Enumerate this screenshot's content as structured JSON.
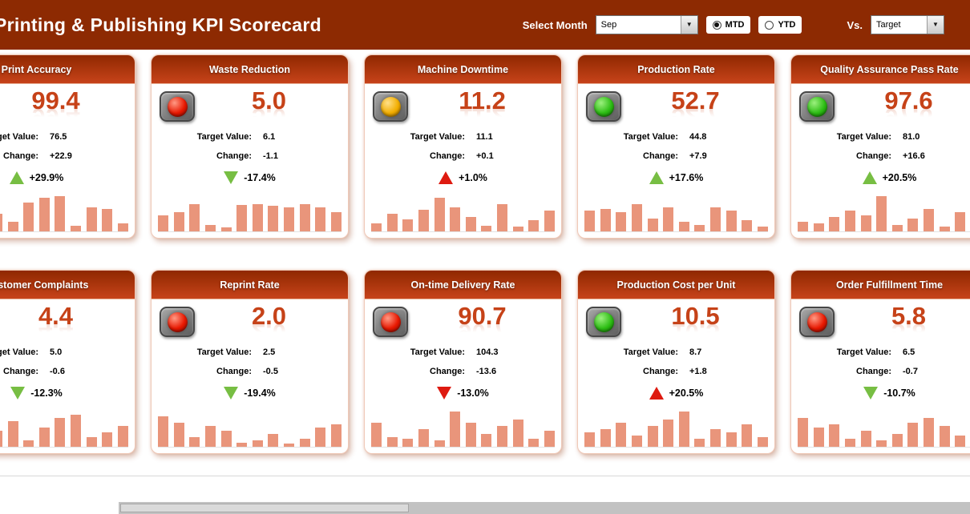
{
  "header": {
    "title": "Printing & Publishing KPI Scorecard",
    "select_month_label": "Select Month",
    "month_value": "Sep",
    "mtd_label": "MTD",
    "ytd_label": "YTD",
    "selected_period": "MTD",
    "vs_label": "Vs.",
    "vs_value": "Target"
  },
  "labels": {
    "target": "Target Value:",
    "change": "Change:"
  },
  "colors": {
    "topbar_bg": "#8D2A02",
    "card_header_top": "#8F2800",
    "card_header_bottom": "#C7431A",
    "value_text": "#C64218",
    "bar_fill": "#E9957B",
    "arrow_green": "#77BE43",
    "arrow_red": "#DE1A10"
  },
  "cards": [
    {
      "title": "Print Accuracy",
      "value": "99.4",
      "target_value": "76.5",
      "change": "+22.9",
      "percent": "+29.9%",
      "trend": "up",
      "trend_color": "green",
      "light": "green",
      "bars": [
        14,
        18,
        5,
        22,
        12,
        36,
        42,
        44,
        7,
        30,
        28,
        10
      ]
    },
    {
      "title": "Waste Reduction",
      "value": "5.0",
      "target_value": "6.1",
      "change": "-1.1",
      "percent": "-17.4%",
      "trend": "down",
      "trend_color": "green",
      "light": "red",
      "bars": [
        20,
        24,
        34,
        8,
        5,
        33,
        34,
        32,
        30,
        34,
        30,
        24
      ]
    },
    {
      "title": "Machine Downtime",
      "value": "11.2",
      "target_value": "11.1",
      "change": "+0.1",
      "percent": "+1.0%",
      "trend": "up",
      "trend_color": "red",
      "light": "yellow",
      "bars": [
        10,
        22,
        15,
        27,
        42,
        30,
        18,
        7,
        34,
        6,
        14,
        26
      ]
    },
    {
      "title": "Production Rate",
      "value": "52.7",
      "target_value": "44.8",
      "change": "+7.9",
      "percent": "+17.6%",
      "trend": "up",
      "trend_color": "green",
      "light": "green",
      "bars": [
        26,
        28,
        24,
        34,
        16,
        30,
        12,
        8,
        30,
        26,
        14,
        6
      ]
    },
    {
      "title": "Quality Assurance Pass Rate",
      "value": "97.6",
      "target_value": "81.0",
      "change": "+16.6",
      "percent": "+20.5%",
      "trend": "up",
      "trend_color": "green",
      "light": "green",
      "bars": [
        12,
        10,
        18,
        26,
        20,
        44,
        8,
        16,
        28,
        6,
        24,
        18
      ]
    },
    {
      "title": "Customer Complaints",
      "value": "4.4",
      "target_value": "5.0",
      "change": "-0.6",
      "percent": "-12.3%",
      "trend": "down",
      "trend_color": "green",
      "light": "red",
      "bars": [
        14,
        30,
        6,
        20,
        32,
        8,
        24,
        36,
        40,
        12,
        18,
        26
      ]
    },
    {
      "title": "Reprint Rate",
      "value": "2.0",
      "target_value": "2.5",
      "change": "-0.5",
      "percent": "-19.4%",
      "trend": "down",
      "trend_color": "green",
      "light": "red",
      "bars": [
        38,
        30,
        12,
        26,
        20,
        5,
        8,
        16,
        4,
        10,
        24,
        28
      ]
    },
    {
      "title": "On-time Delivery Rate",
      "value": "90.7",
      "target_value": "104.3",
      "change": "-13.6",
      "percent": "-13.0%",
      "trend": "down",
      "trend_color": "red",
      "light": "red",
      "bars": [
        30,
        12,
        10,
        22,
        8,
        44,
        30,
        16,
        26,
        34,
        10,
        20
      ]
    },
    {
      "title": "Production Cost per Unit",
      "value": "10.5",
      "target_value": "8.7",
      "change": "+1.8",
      "percent": "+20.5%",
      "trend": "up",
      "trend_color": "red",
      "light": "green",
      "bars": [
        18,
        22,
        30,
        14,
        26,
        34,
        44,
        10,
        22,
        18,
        28,
        12
      ]
    },
    {
      "title": "Order Fulfillment Time",
      "value": "5.8",
      "target_value": "6.5",
      "change": "-0.7",
      "percent": "-10.7%",
      "trend": "down",
      "trend_color": "green",
      "light": "red",
      "bars": [
        36,
        24,
        28,
        10,
        20,
        8,
        16,
        30,
        36,
        26,
        14,
        6
      ]
    }
  ],
  "chart_data": [
    {
      "type": "bar",
      "title": "Print Accuracy",
      "kpi_value": 99.4,
      "target": 76.5,
      "change": 22.9,
      "change_percent": 29.9,
      "status_light": "green",
      "sparkline_relative_values": [
        14,
        18,
        5,
        22,
        12,
        36,
        42,
        44,
        7,
        30,
        28,
        10
      ]
    },
    {
      "type": "bar",
      "title": "Waste Reduction",
      "kpi_value": 5.0,
      "target": 6.1,
      "change": -1.1,
      "change_percent": -17.4,
      "status_light": "red",
      "sparkline_relative_values": [
        20,
        24,
        34,
        8,
        5,
        33,
        34,
        32,
        30,
        34,
        30,
        24
      ]
    },
    {
      "type": "bar",
      "title": "Machine Downtime",
      "kpi_value": 11.2,
      "target": 11.1,
      "change": 0.1,
      "change_percent": 1.0,
      "status_light": "yellow",
      "sparkline_relative_values": [
        10,
        22,
        15,
        27,
        42,
        30,
        18,
        7,
        34,
        6,
        14,
        26
      ]
    },
    {
      "type": "bar",
      "title": "Production Rate",
      "kpi_value": 52.7,
      "target": 44.8,
      "change": 7.9,
      "change_percent": 17.6,
      "status_light": "green",
      "sparkline_relative_values": [
        26,
        28,
        24,
        34,
        16,
        30,
        12,
        8,
        30,
        26,
        14,
        6
      ]
    },
    {
      "type": "bar",
      "title": "Quality Assurance Pass Rate",
      "kpi_value": 97.6,
      "target": 81.0,
      "change": 16.6,
      "change_percent": 20.5,
      "status_light": "green",
      "sparkline_relative_values": [
        12,
        10,
        18,
        26,
        20,
        44,
        8,
        16,
        28,
        6,
        24,
        18
      ]
    },
    {
      "type": "bar",
      "title": "Customer Complaints",
      "kpi_value": 4.4,
      "target": 5.0,
      "change": -0.6,
      "change_percent": -12.3,
      "status_light": "red",
      "sparkline_relative_values": [
        14,
        30,
        6,
        20,
        32,
        8,
        24,
        36,
        40,
        12,
        18,
        26
      ]
    },
    {
      "type": "bar",
      "title": "Reprint Rate",
      "kpi_value": 2.0,
      "target": 2.5,
      "change": -0.5,
      "change_percent": -19.4,
      "status_light": "red",
      "sparkline_relative_values": [
        38,
        30,
        12,
        26,
        20,
        5,
        8,
        16,
        4,
        10,
        24,
        28
      ]
    },
    {
      "type": "bar",
      "title": "On-time Delivery Rate",
      "kpi_value": 90.7,
      "target": 104.3,
      "change": -13.6,
      "change_percent": -13.0,
      "status_light": "red",
      "sparkline_relative_values": [
        30,
        12,
        10,
        22,
        8,
        44,
        30,
        16,
        26,
        34,
        10,
        20
      ]
    },
    {
      "type": "bar",
      "title": "Production Cost per Unit",
      "kpi_value": 10.5,
      "target": 8.7,
      "change": 1.8,
      "change_percent": 20.5,
      "status_light": "green",
      "sparkline_relative_values": [
        18,
        22,
        30,
        14,
        26,
        34,
        44,
        10,
        22,
        18,
        28,
        12
      ]
    },
    {
      "type": "bar",
      "title": "Order Fulfillment Time",
      "kpi_value": 5.8,
      "target": 6.5,
      "change": -0.7,
      "change_percent": -10.7,
      "status_light": "red",
      "sparkline_relative_values": [
        36,
        24,
        28,
        10,
        20,
        8,
        16,
        30,
        36,
        26,
        14,
        6
      ]
    }
  ]
}
